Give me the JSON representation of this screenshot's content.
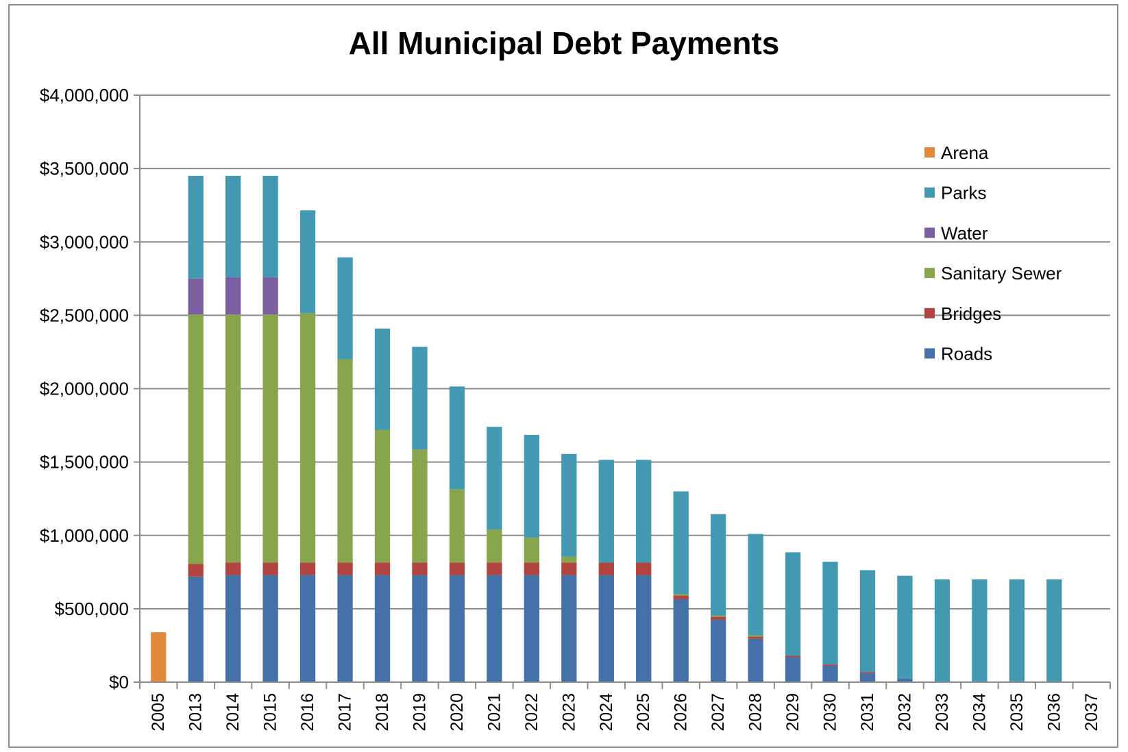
{
  "chart_data": {
    "type": "bar",
    "stacked": true,
    "title": "All Municipal Debt Payments",
    "xlabel": "",
    "ylabel": "",
    "ylim": [
      0,
      4000000
    ],
    "yticks": [
      0,
      500000,
      1000000,
      1500000,
      2000000,
      2500000,
      3000000,
      3500000,
      4000000
    ],
    "ytick_labels": [
      "$0",
      "$500,000",
      "$1,000,000",
      "$1,500,000",
      "$2,000,000",
      "$2,500,000",
      "$3,000,000",
      "$3,500,000",
      "$4,000,000"
    ],
    "grid": true,
    "legend_position": "top-right",
    "categories": [
      "2005",
      "2013",
      "2014",
      "2015",
      "2016",
      "2017",
      "2018",
      "2019",
      "2020",
      "2021",
      "2022",
      "2023",
      "2024",
      "2025",
      "2026",
      "2027",
      "2028",
      "2029",
      "2030",
      "2031",
      "2032",
      "2033",
      "2034",
      "2035",
      "2036",
      "2037"
    ],
    "series": [
      {
        "name": "Roads",
        "color": "#4472a8",
        "values": [
          0,
          720000,
          730000,
          730000,
          730000,
          730000,
          730000,
          730000,
          730000,
          730000,
          730000,
          730000,
          730000,
          730000,
          565000,
          425000,
          295000,
          170000,
          110000,
          60000,
          25000,
          0,
          0,
          0,
          0,
          0
        ]
      },
      {
        "name": "Bridges",
        "color": "#b14441",
        "values": [
          0,
          85000,
          85000,
          85000,
          85000,
          85000,
          85000,
          85000,
          85000,
          85000,
          85000,
          85000,
          85000,
          85000,
          25000,
          20000,
          15000,
          10000,
          10000,
          8000,
          0,
          0,
          0,
          0,
          0,
          0
        ]
      },
      {
        "name": "Sanitary Sewer",
        "color": "#87a54b",
        "values": [
          0,
          1700000,
          1690000,
          1690000,
          1700000,
          1385000,
          905000,
          770000,
          500000,
          225000,
          170000,
          40000,
          0,
          0,
          10000,
          10000,
          10000,
          0,
          0,
          0,
          0,
          0,
          0,
          0,
          0,
          0
        ]
      },
      {
        "name": "Water",
        "color": "#7b5fa0",
        "values": [
          0,
          245000,
          255000,
          255000,
          0,
          0,
          0,
          0,
          0,
          0,
          0,
          0,
          0,
          0,
          0,
          0,
          0,
          0,
          0,
          0,
          0,
          0,
          0,
          0,
          0,
          0
        ]
      },
      {
        "name": "Parks",
        "color": "#4398b2",
        "values": [
          0,
          700000,
          690000,
          690000,
          700000,
          695000,
          690000,
          700000,
          700000,
          700000,
          700000,
          700000,
          700000,
          700000,
          700000,
          690000,
          690000,
          705000,
          700000,
          695000,
          700000,
          700000,
          700000,
          700000,
          700000,
          0
        ]
      },
      {
        "name": "Arena",
        "color": "#e08a3c",
        "values": [
          340000,
          0,
          0,
          0,
          0,
          0,
          0,
          0,
          0,
          0,
          0,
          0,
          0,
          0,
          0,
          0,
          0,
          0,
          0,
          0,
          0,
          0,
          0,
          0,
          0,
          0
        ]
      }
    ],
    "legend_order": [
      "Arena",
      "Parks",
      "Water",
      "Sanitary Sewer",
      "Bridges",
      "Roads"
    ]
  }
}
